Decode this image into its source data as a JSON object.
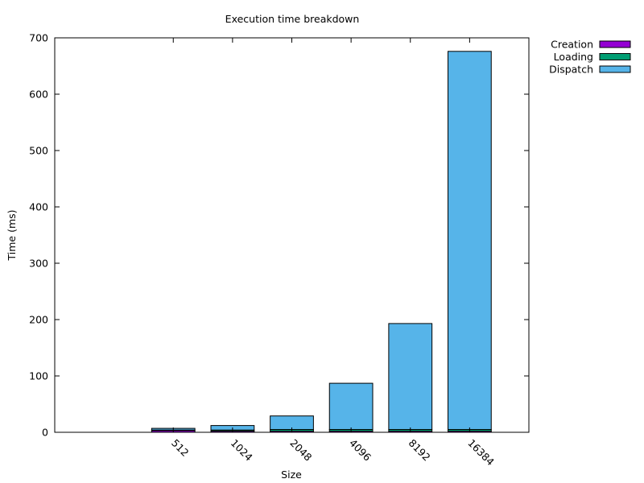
{
  "chart_data": {
    "type": "bar",
    "stacked": true,
    "title": "Execution time breakdown",
    "xlabel": "Size",
    "ylabel": "Time (ms)",
    "ylim": [
      0,
      700
    ],
    "yticks": [
      0,
      100,
      200,
      300,
      400,
      500,
      600,
      700
    ],
    "categories": [
      "512",
      "1024",
      "2048",
      "4096",
      "8192",
      "16384"
    ],
    "series": [
      {
        "name": "Creation",
        "color": "#9400d3",
        "values": [
          3,
          2,
          2,
          2,
          2,
          2
        ]
      },
      {
        "name": "Loading",
        "color": "#009e73",
        "values": [
          1,
          2,
          3,
          3,
          3,
          3
        ]
      },
      {
        "name": "Dispatch",
        "color": "#56b4e9",
        "values": [
          3,
          8,
          24,
          82,
          188,
          671
        ]
      }
    ],
    "grid": false,
    "legend": "outside-top-right"
  }
}
